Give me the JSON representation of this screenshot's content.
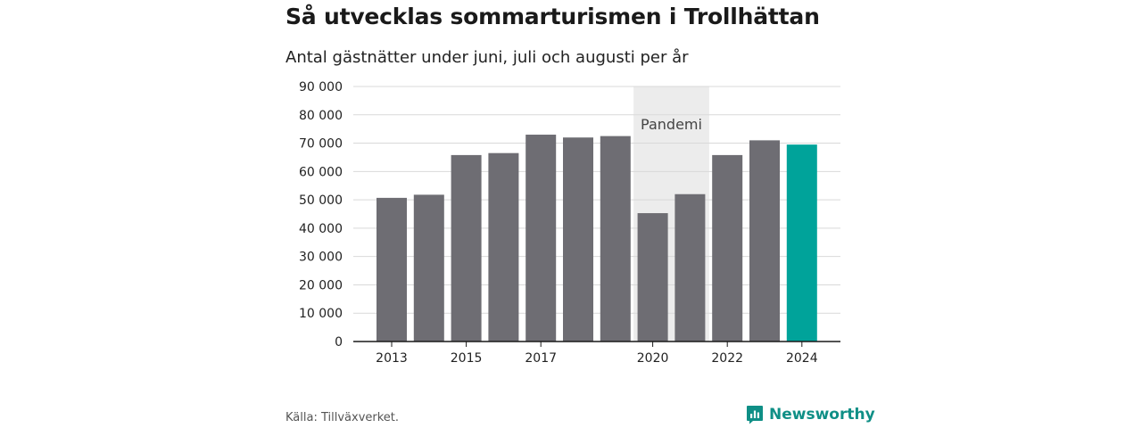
{
  "header": {
    "title": "Så utvecklas sommarturismen i Trollhättan",
    "subtitle": "Antal gästnätter under juni, juli och augusti per år"
  },
  "footer": {
    "source": "Källa: Tillväxverket.",
    "brand": "Newsworthy",
    "brand_icon": "bar-chart-icon"
  },
  "colors": {
    "bar": "#6e6d73",
    "highlight": "#00a39a",
    "shade": "#ececec",
    "grid": "#d9d9d9",
    "axis": "#1a1a1a"
  },
  "chart_data": {
    "type": "bar",
    "title": "Så utvecklas sommarturismen i Trollhättan",
    "subtitle": "Antal gästnätter under juni, juli och augusti per år",
    "categories": [
      "2013",
      "2014",
      "2015",
      "2016",
      "2017",
      "2018",
      "2019",
      "2020",
      "2021",
      "2022",
      "2023",
      "2024"
    ],
    "values": [
      50700,
      51800,
      65800,
      66500,
      73000,
      72000,
      72500,
      45300,
      52000,
      65800,
      71000,
      69500
    ],
    "highlight": "2024",
    "x_tick_labels": [
      "2013",
      "2015",
      "2017",
      "2020",
      "2022",
      "2024"
    ],
    "y_ticks": [
      0,
      10000,
      20000,
      30000,
      40000,
      50000,
      60000,
      70000,
      80000,
      90000
    ],
    "y_tick_labels": [
      "0",
      "10 000",
      "20 000",
      "30 000",
      "40 000",
      "50 000",
      "60 000",
      "70 000",
      "80 000",
      "90 000"
    ],
    "ylim": [
      0,
      90000
    ],
    "grid": true,
    "legend": "none",
    "xlabel": "",
    "ylabel": "",
    "shaded_region": {
      "label": "Pandemi",
      "from": "2020",
      "to": "2021"
    }
  }
}
